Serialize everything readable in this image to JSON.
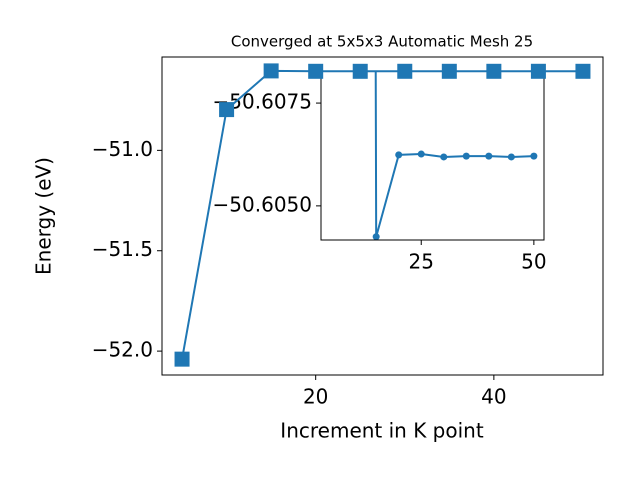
{
  "chart_data": {
    "type": "line",
    "title": "Converged at 5x5x3 Automatic Mesh 25",
    "xlabel": "Increment in K point",
    "ylabel": "Energy (eV)",
    "x": [
      5,
      10,
      15,
      20,
      25,
      30,
      35,
      40,
      45,
      50
    ],
    "series": [
      {
        "color": "#1f77b4",
        "values": [
          -52.04,
          -50.797,
          -50.60425,
          -50.60624,
          -50.60626,
          -50.60619,
          -50.60621,
          -50.60621,
          -50.60619,
          -50.60621
        ]
      }
    ],
    "xlim": [
      2.75,
      52.25
    ],
    "ylim": [
      -52.119,
      -50.535
    ],
    "xticks": [
      20,
      40
    ],
    "yticks": [
      {
        "value": -52.0,
        "label": "−52.0"
      },
      {
        "value": -51.5,
        "label": "−51.5"
      },
      {
        "value": -51.0,
        "label": "−51.0"
      }
    ],
    "inset": {
      "xlim": [
        2.75,
        52.25
      ],
      "ylim": [
        -50.60417,
        -50.60828
      ],
      "xticks": [
        25,
        50
      ],
      "yticks": [
        {
          "value": -50.605,
          "label": "−50.6050"
        },
        {
          "value": -50.6075,
          "label": "−50.6075"
        }
      ]
    }
  }
}
